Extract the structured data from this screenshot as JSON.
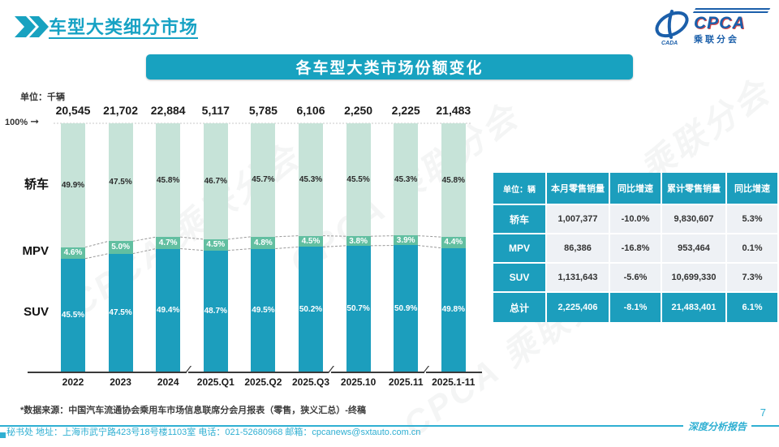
{
  "accent": "#18a2c0",
  "header": {
    "title": "车型大类细分市场",
    "logo": {
      "cpca": "CPCA",
      "sub": "乘联分会"
    }
  },
  "banner": {
    "title": "各车型大类市场份额变化"
  },
  "watermark_text": "CPCA 乘联分会",
  "chart_data": {
    "type": "bar",
    "stacked": true,
    "unit_label": "单位：千辆",
    "axis_label_100": "100%",
    "categories": [
      "2022",
      "2023",
      "2024",
      "2025.Q1",
      "2025.Q2",
      "2025.Q3",
      "2025.10",
      "2025.11",
      "2025.1-11"
    ],
    "totals": [
      "20,545",
      "21,702",
      "22,884",
      "5,117",
      "5,785",
      "6,106",
      "2,250",
      "2,225",
      "21,483"
    ],
    "series": [
      {
        "name": "轿车",
        "color": "#c6e3d8",
        "label_style": "dark",
        "values": [
          49.9,
          47.5,
          45.8,
          46.7,
          45.7,
          45.3,
          45.5,
          45.3,
          45.8
        ]
      },
      {
        "name": "MPV",
        "color": "#62bfa1",
        "label_style": "light",
        "values": [
          4.6,
          5.0,
          4.7,
          4.5,
          4.8,
          4.5,
          3.8,
          3.9,
          4.4
        ]
      },
      {
        "name": "SUV",
        "color": "#1c9ebd",
        "label_style": "light",
        "values": [
          45.5,
          47.5,
          49.4,
          48.7,
          49.5,
          50.2,
          50.7,
          50.9,
          49.8
        ]
      }
    ],
    "break_after_indices": [
      2,
      5,
      7
    ],
    "ylim": [
      0,
      100
    ],
    "legend_position": "left",
    "grid": false
  },
  "table": {
    "headers": [
      "单位：辆",
      "本月零售销量",
      "同比增速",
      "累计零售销量",
      "同比增速"
    ],
    "rows": [
      {
        "label": "轿车",
        "cells": [
          "1,007,377",
          "-10.0%",
          "9,830,607",
          "5.3%"
        ],
        "total": false
      },
      {
        "label": "MPV",
        "cells": [
          "86,386",
          "-16.8%",
          "953,464",
          "0.1%"
        ],
        "total": false
      },
      {
        "label": "SUV",
        "cells": [
          "1,131,643",
          "-5.6%",
          "10,699,330",
          "7.3%"
        ],
        "total": false
      },
      {
        "label": "总计",
        "cells": [
          "2,225,406",
          "-8.1%",
          "21,483,401",
          "6.1%"
        ],
        "total": true
      }
    ]
  },
  "source_note": "*数据来源：中国汽车流通协会乘用车市场信息联席分会月报表（零售，狭义汇总）-终稿",
  "footer": {
    "left": "秘书处  地址：上海市武宁路423号18号楼1103室 电话：021-52680968  邮箱：cpcanews@sxtauto.com.cn",
    "report_label": "深度分析报告",
    "page": "7"
  }
}
